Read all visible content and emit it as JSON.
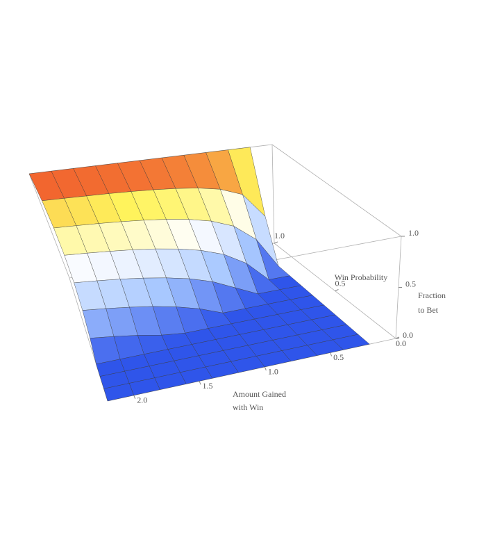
{
  "chart_data": {
    "type": "surface",
    "x_label": [
      "Amount Gained",
      "with Win"
    ],
    "y_label": "Win Probability",
    "z_label": [
      "Fraction",
      "to Bet"
    ],
    "x": [
      0.2,
      0.4,
      0.6,
      0.8,
      1.0,
      1.2,
      1.4,
      1.6,
      1.8,
      2.0,
      2.2
    ],
    "y": [
      0,
      0.1,
      0.2,
      0.3,
      0.4,
      0.5,
      0.6,
      0.7,
      0.8,
      0.9,
      1.0
    ],
    "z": [
      [
        0,
        0,
        0,
        0,
        0,
        0,
        0,
        0,
        0,
        0.4,
        1
      ],
      [
        0,
        0,
        0,
        0,
        0,
        0,
        0,
        0,
        0.3,
        0.65,
        1
      ],
      [
        0,
        0,
        0,
        0,
        0,
        0,
        0,
        0.2,
        0.467,
        0.733,
        1
      ],
      [
        0,
        0,
        0,
        0,
        0,
        0,
        0.1,
        0.325,
        0.55,
        0.775,
        1
      ],
      [
        0,
        0,
        0,
        0,
        0,
        0,
        0.2,
        0.4,
        0.6,
        0.8,
        1
      ],
      [
        0,
        0,
        0,
        0,
        0,
        0.083,
        0.267,
        0.45,
        0.633,
        0.817,
        1
      ],
      [
        0,
        0,
        0,
        0,
        0,
        0.143,
        0.314,
        0.486,
        0.657,
        0.829,
        1
      ],
      [
        0,
        0,
        0,
        0,
        0.025,
        0.188,
        0.35,
        0.513,
        0.675,
        0.838,
        1
      ],
      [
        0,
        0,
        0,
        0,
        0.067,
        0.222,
        0.378,
        0.533,
        0.689,
        0.844,
        1
      ],
      [
        0,
        0,
        0,
        0,
        0.1,
        0.25,
        0.4,
        0.55,
        0.7,
        0.85,
        1
      ],
      [
        0,
        0,
        0,
        0,
        0.127,
        0.273,
        0.418,
        0.564,
        0.709,
        0.855,
        1
      ]
    ],
    "xlim": [
      0,
      2.2
    ],
    "ylim": [
      0,
      1
    ],
    "zlim": [
      0,
      1
    ],
    "xticks": [
      {
        "value": 0.5,
        "label": "0.5"
      },
      {
        "value": 1.0,
        "label": "1.0"
      },
      {
        "value": 1.5,
        "label": "1.5"
      },
      {
        "value": 2.0,
        "label": "2.0"
      }
    ],
    "yticks": [
      {
        "value": 0,
        "label": "0.0"
      },
      {
        "value": 0.5,
        "label": "0.5"
      },
      {
        "value": 1.0,
        "label": "1.0"
      }
    ],
    "zticks": [
      {
        "value": 0,
        "label": "0.0"
      },
      {
        "value": 0.5,
        "label": "0.5"
      },
      {
        "value": 1.0,
        "label": "1.0"
      }
    ],
    "colormap": [
      "#2f55ea",
      "#a9c9ff",
      "#ffffff",
      "#fff35c",
      "#ec2b1c"
    ],
    "mesh_color": "#3a3a3a",
    "box_color": "#b0b0b0"
  }
}
